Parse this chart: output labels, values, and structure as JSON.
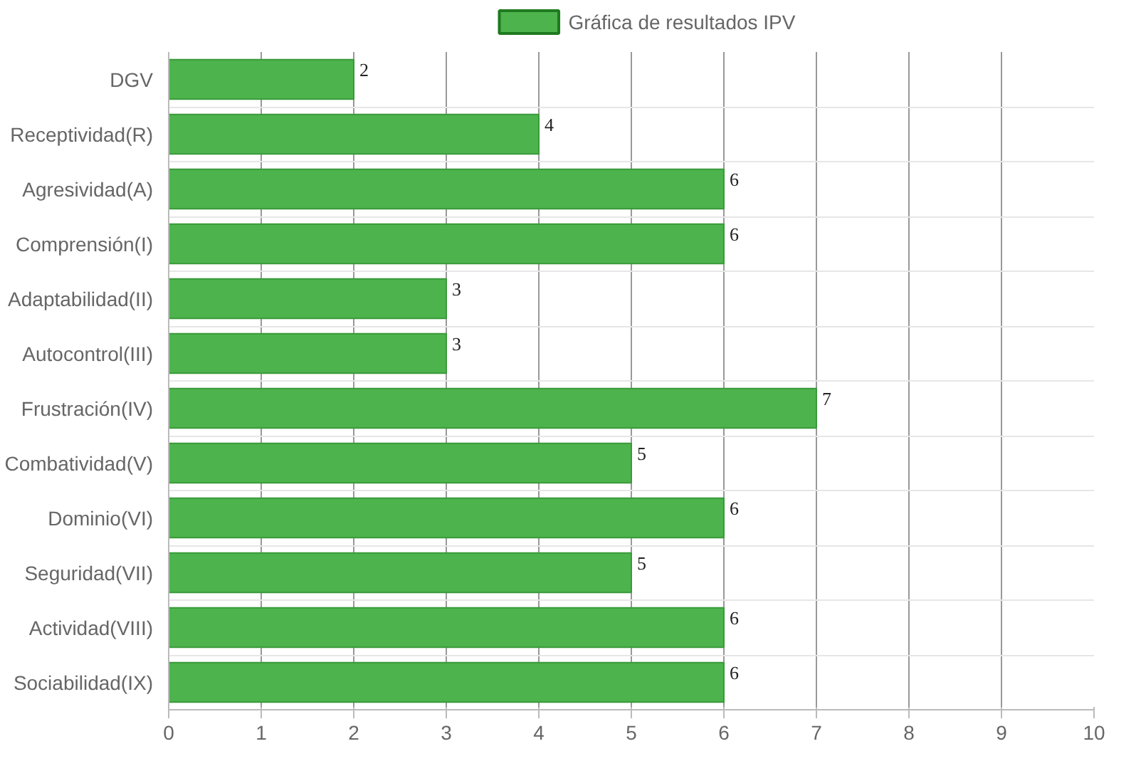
{
  "chart_data": {
    "type": "bar",
    "orientation": "horizontal",
    "categories": [
      "DGV",
      "Receptividad(R)",
      "Agresividad(A)",
      "Comprensión(I)",
      "Adaptabilidad(II)",
      "Autocontrol(III)",
      "Frustración(IV)",
      "Combatividad(V)",
      "Dominio(VI)",
      "Seguridad(VII)",
      "Actividad(VIII)",
      "Sociabilidad(IX)"
    ],
    "series": [
      {
        "name": "Gráfica de resultados IPV",
        "color": "#4db34d",
        "values": [
          2,
          4,
          6,
          6,
          3,
          3,
          7,
          5,
          6,
          5,
          6,
          6
        ]
      }
    ],
    "xlim": [
      0,
      10
    ],
    "xticks": [
      0,
      1,
      2,
      3,
      4,
      5,
      6,
      7,
      8,
      9,
      10
    ],
    "grid": true,
    "legend": "top",
    "data_labels": true
  }
}
